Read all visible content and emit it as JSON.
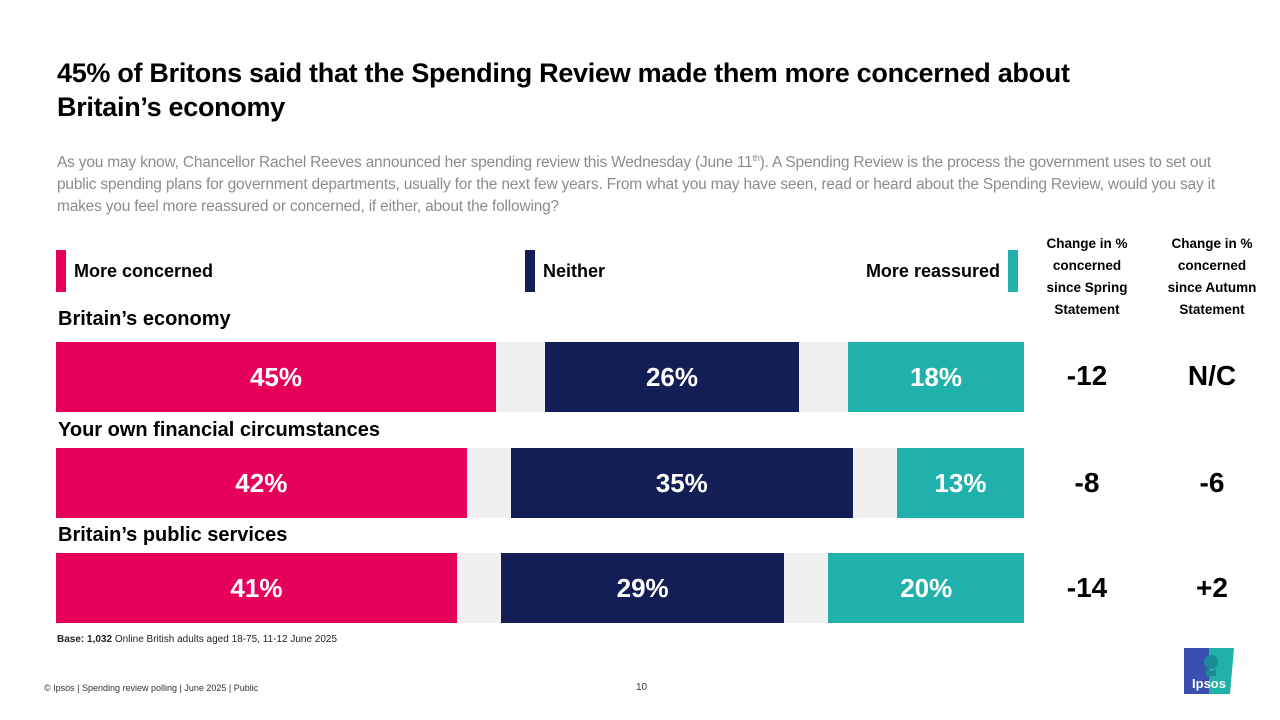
{
  "header": {
    "title": "45% of Britons said that the Spending Review made them more concerned about Britain’s economy",
    "subtitle_pre": "As you may know, Chancellor Rachel Reeves announced her spending review this Wednesday (June 11",
    "subtitle_sup": "th",
    "subtitle_post": "). A Spending Review is the process the government uses to set out public spending plans for government departments, usually for the next few years. From what you may have seen, read or heard about the Spending Review, would you say it makes you feel more reassured or concerned, if either, about the following?"
  },
  "colors": {
    "concerned": "#e6005c",
    "neither": "#131d56",
    "reassured": "#21b1ad",
    "gap": "#f0f0f0"
  },
  "chart_data": {
    "type": "bar",
    "orientation": "horizontal-stacked",
    "title": "45% of Britons said that the Spending Review made them more concerned about Britain’s economy",
    "categories": [
      "Britain’s economy",
      "Your own financial circumstances",
      "Britain’s public services"
    ],
    "series": [
      {
        "name": "More concerned",
        "values": [
          45,
          42,
          41
        ]
      },
      {
        "name": "Neither",
        "values": [
          26,
          35,
          29
        ]
      },
      {
        "name": "More reassured",
        "values": [
          18,
          13,
          20
        ]
      }
    ],
    "data_labels": [
      [
        "45%",
        "26%",
        "18%"
      ],
      [
        "42%",
        "35%",
        "13%"
      ],
      [
        "41%",
        "29%",
        "20%"
      ]
    ],
    "legend": [
      "More concerned",
      "Neither",
      "More reassured"
    ],
    "legend_placement": "top",
    "xlim": [
      0,
      100
    ],
    "unit": "%",
    "side_columns": [
      {
        "header": "Change in % concerned since Spring Statement",
        "values": [
          "-12",
          "-8",
          "-14"
        ]
      },
      {
        "header": "Change in % concerned since Autumn Statement",
        "values": [
          "N/C",
          "-6",
          "+2"
        ]
      }
    ]
  },
  "column_headers": {
    "spring": [
      "Change in %",
      "concerned",
      "since Spring",
      "Statement"
    ],
    "autumn": [
      "Change in %",
      "concerned",
      "since Autumn",
      "Statement"
    ]
  },
  "base": {
    "label": "Base:",
    "count": "1,032",
    "text": "Online British adults aged 18-75, 11-12 June 2025"
  },
  "footer": {
    "text": "© Ipsos | Spending review polling | June 2025 | Public",
    "page_number": "10"
  },
  "logo": {
    "text": "Ipsos",
    "icon": "ipsos-logo-icon"
  }
}
